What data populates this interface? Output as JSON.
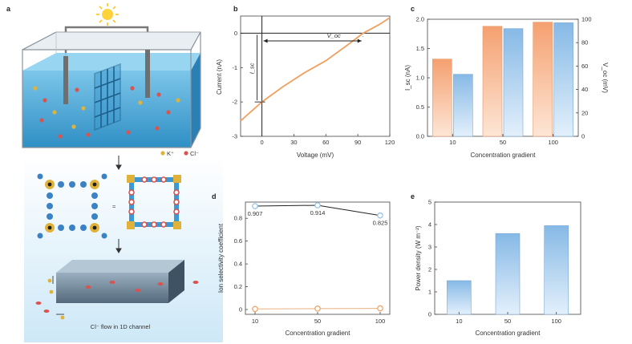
{
  "panel_labels": {
    "a": "a",
    "b": "b",
    "c": "c",
    "d": "d",
    "e": "e"
  },
  "schematic": {
    "legend_k": "K⁺",
    "legend_cl": "Cl⁻",
    "approx": "≈",
    "channel_caption": "Cl⁻ flow in 1D channel",
    "colors": {
      "water": "#4aa8d6",
      "k_ion": "#e0b23a",
      "cl_ion": "#d9534f",
      "framework": "#3b82c4"
    }
  },
  "chart_data": [
    {
      "id": "b",
      "type": "line",
      "xlabel": "Voltage (mV)",
      "ylabel": "Current (nA)",
      "xlim": [
        -20,
        120
      ],
      "ylim": [
        -3,
        0.5
      ],
      "xticks": [
        0,
        30,
        60,
        90,
        120
      ],
      "yticks": [
        -3,
        -2,
        -1,
        0
      ],
      "annotations": {
        "voc": "V_oc",
        "isc": "I_sc"
      },
      "series": [
        {
          "x": [
            -20,
            0,
            20,
            40,
            60,
            80,
            95,
            110,
            120
          ],
          "y": [
            -2.55,
            -2.0,
            -1.55,
            -1.15,
            -0.8,
            -0.35,
            0.0,
            0.25,
            0.45
          ],
          "color": "#f0a060"
        }
      ]
    },
    {
      "id": "c",
      "type": "bar",
      "xlabel": "Concentration gradient",
      "ylabel_left": "I_sc (nA)",
      "ylabel_right": "V_oc (mV)",
      "categories": [
        "10",
        "50",
        "100"
      ],
      "ylim_left": [
        0,
        2
      ],
      "ylim_right": [
        0,
        100
      ],
      "yticks_left": [
        0,
        0.5,
        1.0,
        1.5,
        2.0
      ],
      "yticks_right": [
        0,
        20,
        40,
        60,
        80,
        100
      ],
      "series": [
        {
          "values": [
            1.32,
            1.88,
            1.95
          ],
          "color": "#f5a878"
        },
        {
          "values": [
            53,
            92,
            97
          ],
          "color": "#8fbfe8"
        }
      ]
    },
    {
      "id": "d",
      "type": "line",
      "xlabel": "Concentration gradient",
      "ylabel": "Ion selectivity coefficient",
      "categories": [
        "10",
        "50",
        "100"
      ],
      "ylim": [
        0,
        0.9
      ],
      "yticks": [
        0,
        0.2,
        0.4,
        0.6,
        0.8
      ],
      "series": [
        {
          "values": [
            0.907,
            0.914,
            0.825
          ],
          "labels": [
            "0.907",
            "0.914",
            "0.825"
          ],
          "color": "#222",
          "marker": "#8fbfe8"
        },
        {
          "values": [
            0.005,
            0.008,
            0.01
          ],
          "color": "#e8b080",
          "marker": "#f0a060"
        }
      ]
    },
    {
      "id": "e",
      "type": "bar",
      "xlabel": "Concentration gradient",
      "ylabel": "Power density (W m⁻²)",
      "categories": [
        "10",
        "50",
        "100"
      ],
      "values": [
        1.5,
        3.6,
        3.95
      ],
      "ylim": [
        0,
        5
      ],
      "yticks": [
        0,
        1,
        2,
        3,
        4,
        5
      ],
      "color": "#8fbfe8"
    }
  ]
}
